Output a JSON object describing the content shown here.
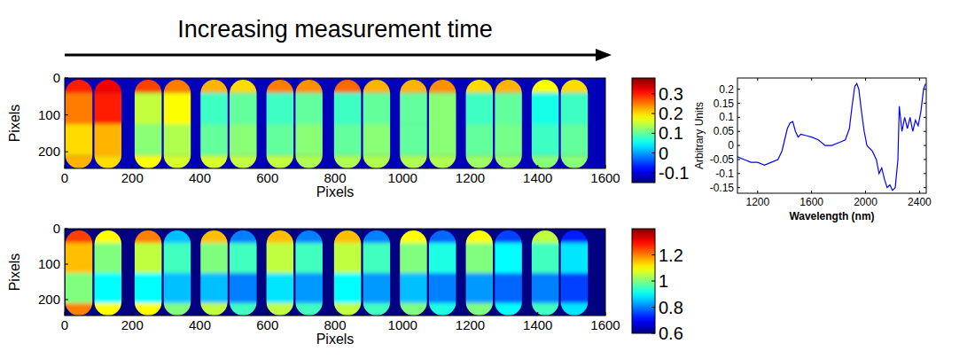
{
  "header": {
    "title": "Increasing measurement time"
  },
  "chart_data": [
    {
      "type": "heatmap",
      "x_label": "Pixels",
      "y_label": "Pixels",
      "xlim": [
        0,
        1600
      ],
      "xticks": [
        0,
        200,
        400,
        600,
        800,
        1000,
        1200,
        1400,
        1600
      ],
      "ylim": [
        0,
        245
      ],
      "yticks": [
        0,
        100,
        200
      ],
      "capsule_x": [
        42,
        128,
        247,
        333,
        442,
        528,
        637,
        723,
        837,
        923,
        1032,
        1118,
        1227,
        1313,
        1422,
        1508
      ],
      "capsule_width": 80,
      "row_edges": [
        5,
        40,
        125,
        210,
        245
      ],
      "cells": [
        [
          0.3,
          0.25,
          0.2,
          0.22
        ],
        [
          0.32,
          0.3,
          0.22,
          0.2
        ],
        [
          0.28,
          0.15,
          0.12,
          0.18
        ],
        [
          0.25,
          0.18,
          0.14,
          0.16
        ],
        [
          0.22,
          0.08,
          0.1,
          0.16
        ],
        [
          0.2,
          0.1,
          0.12,
          0.15
        ],
        [
          0.25,
          0.08,
          0.1,
          0.15
        ],
        [
          0.24,
          0.1,
          0.12,
          0.14
        ],
        [
          0.26,
          0.08,
          0.1,
          0.14
        ],
        [
          0.22,
          0.1,
          0.12,
          0.14
        ],
        [
          0.22,
          0.1,
          0.1,
          0.14
        ],
        [
          0.24,
          0.12,
          0.12,
          0.14
        ],
        [
          0.2,
          0.08,
          0.1,
          0.13
        ],
        [
          0.22,
          0.1,
          0.11,
          0.13
        ],
        [
          0.18,
          0.06,
          0.08,
          0.12
        ],
        [
          0.2,
          0.08,
          0.1,
          0.12
        ]
      ],
      "background": -0.12,
      "colorbar": {
        "range": [
          -0.15,
          0.38
        ],
        "ticks": [
          0.3,
          0.2,
          0.1,
          0,
          -0.1
        ]
      }
    },
    {
      "type": "heatmap",
      "x_label": "Pixels",
      "y_label": "Pixels",
      "xlim": [
        0,
        1600
      ],
      "xticks": [
        0,
        200,
        400,
        600,
        800,
        1000,
        1200,
        1400,
        1600
      ],
      "ylim": [
        0,
        245
      ],
      "yticks": [
        0,
        100,
        200
      ],
      "capsule_x": [
        42,
        128,
        247,
        333,
        442,
        528,
        637,
        723,
        837,
        923,
        1032,
        1118,
        1227,
        1313,
        1422,
        1508
      ],
      "capsule_width": 80,
      "row_edges": [
        5,
        40,
        125,
        210,
        245
      ],
      "cells": [
        [
          1.25,
          1.15,
          1.0,
          1.2
        ],
        [
          1.1,
          1.0,
          0.9,
          1.1
        ],
        [
          1.2,
          1.05,
          0.9,
          1.1
        ],
        [
          0.85,
          0.95,
          0.85,
          1.0
        ],
        [
          1.15,
          1.0,
          0.85,
          1.05
        ],
        [
          0.8,
          0.95,
          0.8,
          0.95
        ],
        [
          1.15,
          1.05,
          0.88,
          1.05
        ],
        [
          0.8,
          0.95,
          0.82,
          0.95
        ],
        [
          1.15,
          1.05,
          0.9,
          1.05
        ],
        [
          0.8,
          0.95,
          0.82,
          0.95
        ],
        [
          1.1,
          1.0,
          0.85,
          1.0
        ],
        [
          0.78,
          0.92,
          0.8,
          0.92
        ],
        [
          1.1,
          1.0,
          0.82,
          1.0
        ],
        [
          0.75,
          0.9,
          0.78,
          0.9
        ],
        [
          1.05,
          0.95,
          0.8,
          0.95
        ],
        [
          0.72,
          0.88,
          0.75,
          0.88
        ]
      ],
      "background": 0.6,
      "colorbar": {
        "range": [
          0.6,
          1.4
        ],
        "ticks": [
          1.2,
          1,
          0.8,
          0.6
        ]
      }
    },
    {
      "type": "line",
      "x_label": "Wavelength (nm)",
      "y_label": "Arbitrary Units",
      "xlim": [
        1050,
        2450
      ],
      "xticks": [
        1200,
        1600,
        2000,
        2400
      ],
      "ylim": [
        -0.17,
        0.24
      ],
      "yticks": [
        0.2,
        0.15,
        0.1,
        0.05,
        0,
        -0.05,
        -0.1,
        -0.15
      ],
      "color": "#0000ff",
      "x": [
        1050,
        1100,
        1150,
        1200,
        1250,
        1300,
        1350,
        1380,
        1400,
        1420,
        1440,
        1460,
        1480,
        1500,
        1520,
        1560,
        1600,
        1650,
        1700,
        1750,
        1800,
        1850,
        1880,
        1900,
        1920,
        1935,
        1950,
        1970,
        1990,
        2010,
        2050,
        2080,
        2100,
        2120,
        2140,
        2160,
        2180,
        2200,
        2220,
        2240,
        2250,
        2270,
        2290,
        2310,
        2330,
        2350,
        2370,
        2390,
        2410,
        2430,
        2445
      ],
      "values": [
        -0.04,
        -0.05,
        -0.06,
        -0.06,
        -0.07,
        -0.06,
        -0.05,
        -0.02,
        0.02,
        0.06,
        0.08,
        0.085,
        0.05,
        0.03,
        0.04,
        0.035,
        0.03,
        0.02,
        0.0,
        0.0,
        0.01,
        0.02,
        0.06,
        0.14,
        0.21,
        0.22,
        0.2,
        0.12,
        0.05,
        0.0,
        -0.02,
        -0.05,
        -0.1,
        -0.08,
        -0.12,
        -0.15,
        -0.14,
        -0.16,
        -0.15,
        -0.05,
        0.14,
        0.05,
        0.1,
        0.06,
        0.1,
        0.05,
        0.09,
        0.07,
        0.12,
        0.2,
        0.22
      ]
    }
  ]
}
